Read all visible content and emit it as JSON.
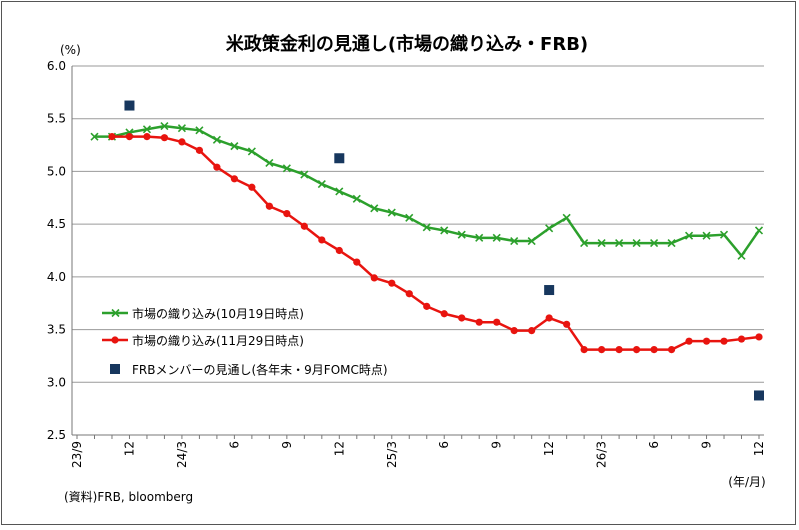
{
  "chart_data": {
    "type": "line",
    "title": "米政策金利の見通し(市場の織り込み・FRB)",
    "ylabel": "(%)",
    "xlabel": "(年/月)",
    "source": "(資料)FRB, bloomberg",
    "ylim": [
      2.5,
      6.0
    ],
    "yticks": [
      "6.0",
      "5.5",
      "5.0",
      "4.5",
      "4.0",
      "3.5",
      "3.0",
      "2.5"
    ],
    "grid": true,
    "legend_position": "left-middle",
    "x_tick_labels": [
      {
        "label": "23/9",
        "x": 0
      },
      {
        "label": "12",
        "x": 3
      },
      {
        "label": "24/3",
        "x": 6
      },
      {
        "label": "6",
        "x": 9
      },
      {
        "label": "9",
        "x": 12
      },
      {
        "label": "12",
        "x": 15
      },
      {
        "label": "25/3",
        "x": 18
      },
      {
        "label": "6",
        "x": 21
      },
      {
        "label": "9",
        "x": 24
      },
      {
        "label": "12",
        "x": 27
      },
      {
        "label": "26/3",
        "x": 30
      },
      {
        "label": "6",
        "x": 33
      },
      {
        "label": "9",
        "x": 36
      },
      {
        "label": "12",
        "x": 39
      }
    ],
    "x_min": 0,
    "x_max": 39,
    "series": [
      {
        "name": "市場の織り込み(10月19日時点)",
        "color": "#2ca02c",
        "marker": "x",
        "x": [
          1,
          2,
          3,
          4,
          5,
          6,
          7,
          8,
          9,
          10,
          11,
          12,
          13,
          14,
          15,
          16,
          17,
          18,
          19,
          20,
          21,
          22,
          23,
          24,
          25,
          26,
          27,
          28,
          29,
          30,
          31,
          32,
          33,
          34,
          35,
          36,
          37,
          38,
          39
        ],
        "values": [
          5.33,
          5.33,
          5.37,
          5.4,
          5.43,
          5.41,
          5.39,
          5.3,
          5.24,
          5.19,
          5.08,
          5.03,
          4.97,
          4.88,
          4.81,
          4.74,
          4.65,
          4.61,
          4.56,
          4.47,
          4.44,
          4.4,
          4.37,
          4.37,
          4.34,
          4.34,
          4.46,
          4.56,
          4.32,
          4.32,
          4.32,
          4.32,
          4.32,
          4.32,
          4.39,
          4.39,
          4.4,
          4.2,
          4.44
        ]
      },
      {
        "name": "市場の織り込み(11月29日時点)",
        "color": "#e8140f",
        "marker": "circle",
        "x": [
          2,
          3,
          4,
          5,
          6,
          7,
          8,
          9,
          10,
          11,
          12,
          13,
          14,
          15,
          16,
          17,
          18,
          19,
          20,
          21,
          22,
          23,
          24,
          25,
          26,
          27,
          28,
          29,
          30,
          31,
          32,
          33,
          34,
          35,
          36,
          37,
          38,
          39
        ],
        "values": [
          5.33,
          5.33,
          5.33,
          5.32,
          5.28,
          5.2,
          5.04,
          4.93,
          4.85,
          4.67,
          4.6,
          4.48,
          4.35,
          4.25,
          4.14,
          3.99,
          3.94,
          3.84,
          3.72,
          3.65,
          3.61,
          3.57,
          3.57,
          3.49,
          3.49,
          3.61,
          3.55,
          3.31,
          3.31,
          3.31,
          3.31,
          3.31,
          3.31,
          3.39,
          3.39,
          3.39,
          3.41,
          3.43
        ]
      },
      {
        "name": "FRBメンバーの見通し(各年末・9月FOMC時点)",
        "color": "#17375e",
        "marker": "square",
        "x": [
          3,
          15,
          27,
          39
        ],
        "values": [
          5.625,
          5.125,
          3.875,
          2.875
        ]
      }
    ]
  }
}
